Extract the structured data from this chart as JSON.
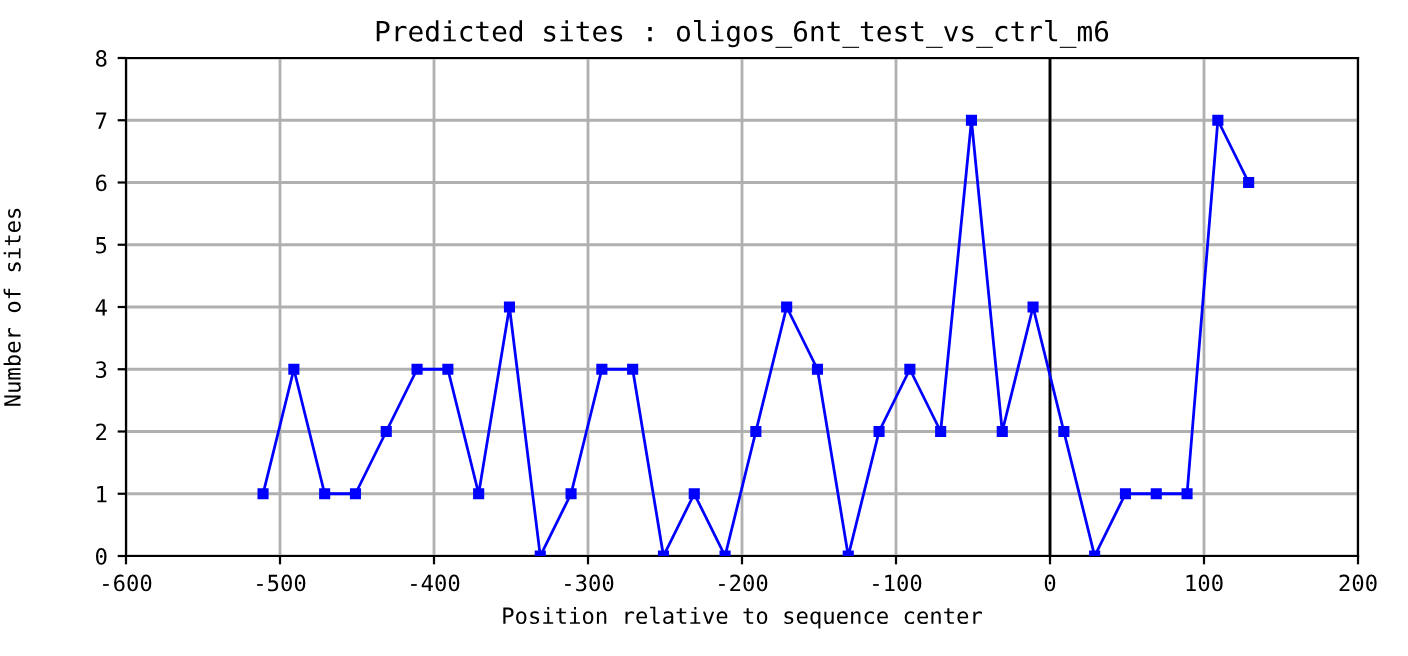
{
  "chart_data": {
    "type": "line",
    "title": "Predicted sites : oligos_6nt_test_vs_ctrl_m6",
    "xlabel": "Position relative to sequence center",
    "ylabel": "Number of sites",
    "x": [
      -511,
      -491,
      -471,
      -451,
      -431,
      -411,
      -391,
      -371,
      -351,
      -331,
      -311,
      -291,
      -271,
      -251,
      -231,
      -211,
      -191,
      -171,
      -151,
      -131,
      -111,
      -91,
      -71,
      -51,
      -31,
      -11,
      9,
      29,
      49,
      69,
      89,
      109,
      129
    ],
    "series": [
      {
        "color": "#0000ff",
        "values": [
          1,
          3,
          1,
          1,
          2,
          3,
          3,
          1,
          4,
          0,
          1,
          3,
          3,
          0,
          1,
          0,
          2,
          4,
          3,
          0,
          2,
          3,
          2,
          7,
          2,
          4,
          2,
          0,
          1,
          1,
          1,
          7,
          6
        ]
      }
    ],
    "xlim": [
      -600,
      200
    ],
    "xticks": [
      -600,
      -500,
      -400,
      -300,
      -200,
      -100,
      0,
      100,
      200
    ],
    "ylim": [
      0,
      8
    ],
    "yticks": [
      0,
      1,
      2,
      3,
      4,
      5,
      6,
      7,
      8
    ],
    "ref_lines": [
      {
        "axis": "x",
        "value": 0,
        "color": "#000000"
      }
    ],
    "grid": true,
    "marker": "square",
    "line_style": "solid"
  }
}
